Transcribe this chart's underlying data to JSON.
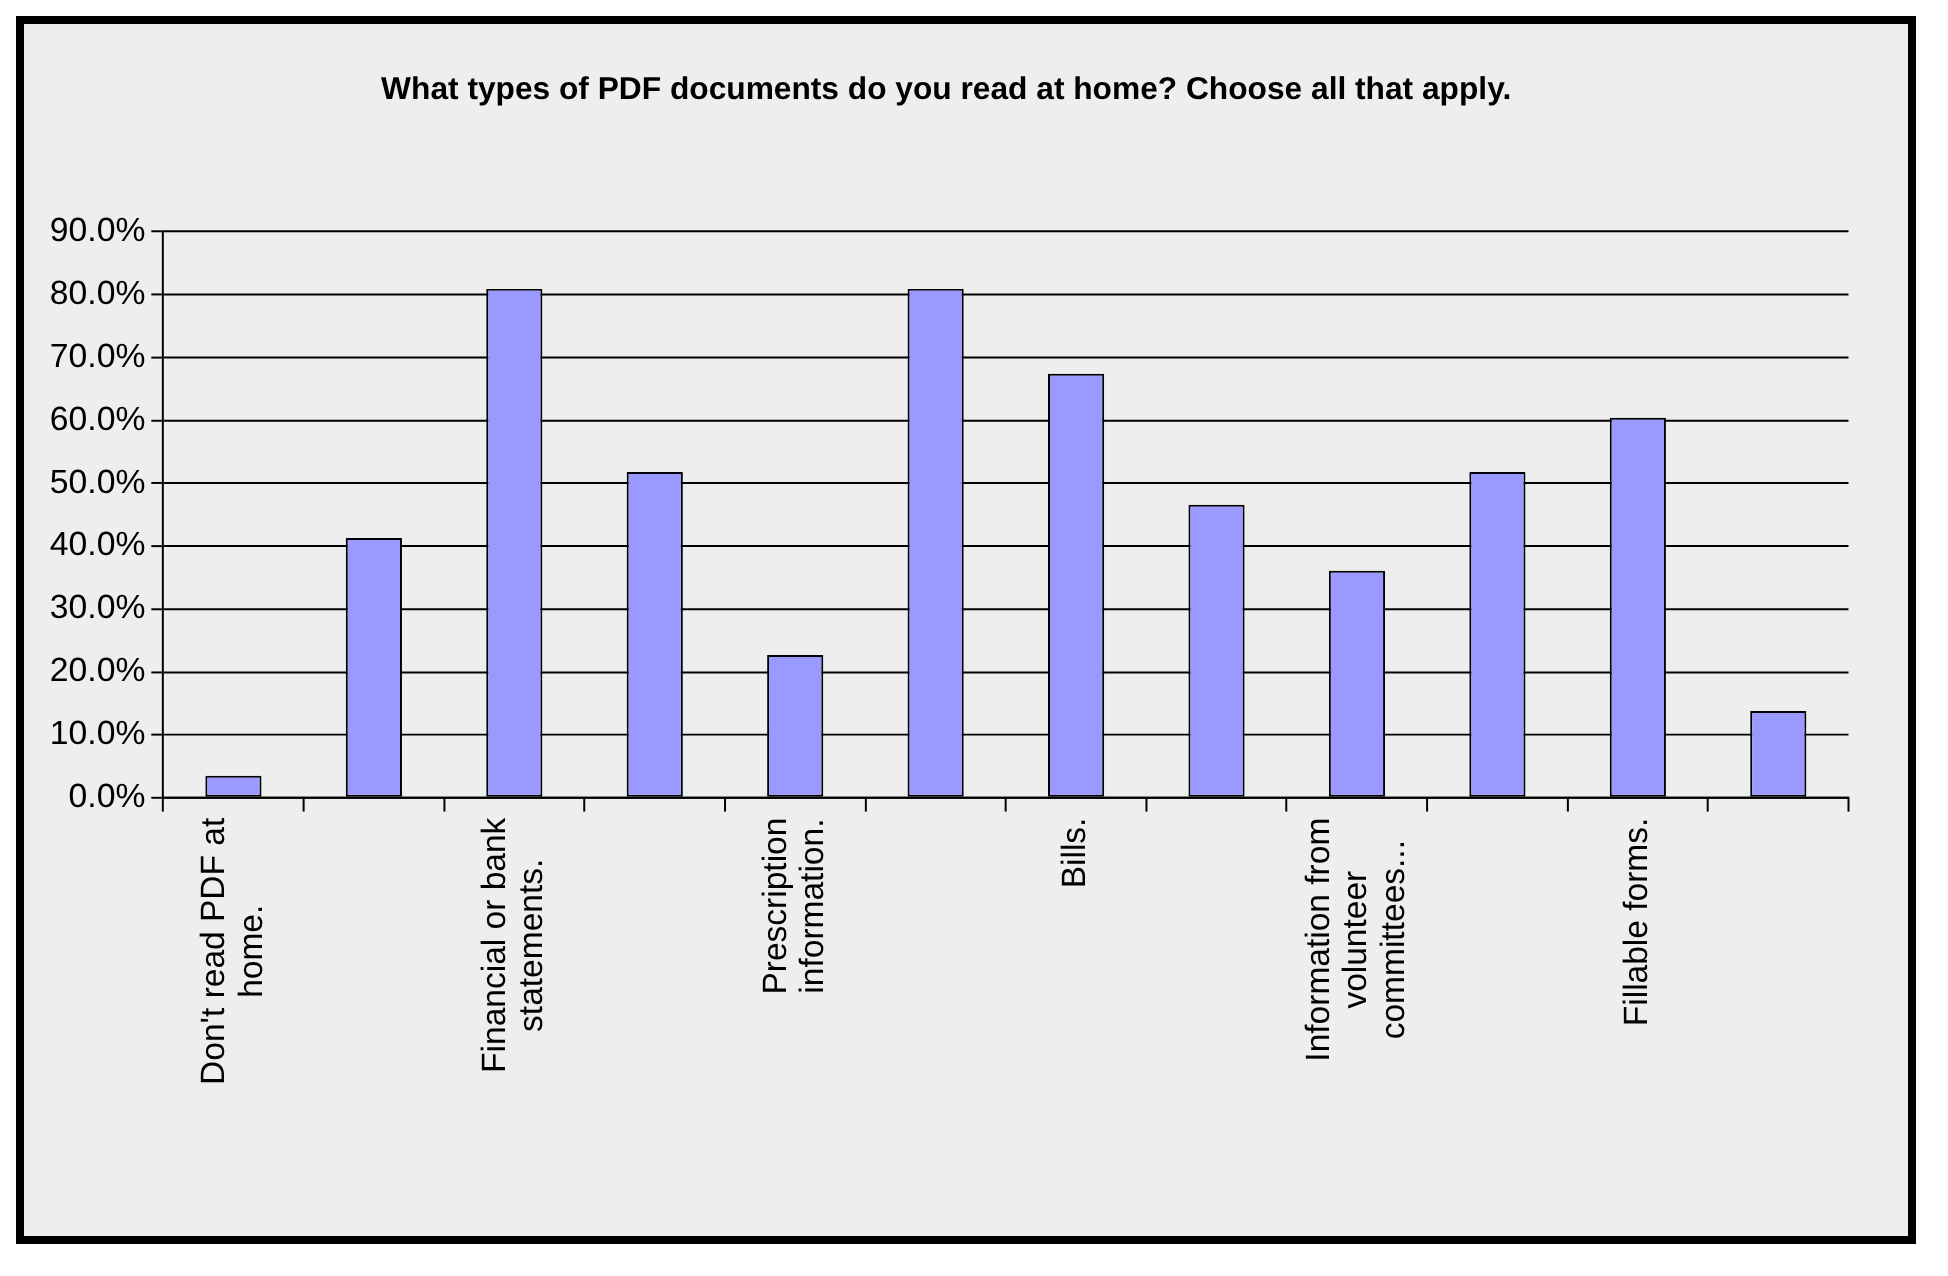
{
  "chart_data": {
    "type": "bar",
    "title": "What types of PDF documents do you read at home? Choose all that apply.",
    "categories": [
      "Don't read PDF at home.",
      null,
      "Financial or bank statements.",
      null,
      "Prescription information.",
      null,
      "Bills.",
      null,
      "Information from volunteer committees...",
      null,
      "Fillable forms.",
      null
    ],
    "values": [
      3.5,
      41.3,
      80.9,
      51.8,
      22.7,
      80.9,
      67.4,
      46.6,
      36.1,
      51.8,
      60.4,
      13.8
    ],
    "color": "#9999ff",
    "ylim": [
      0,
      90
    ],
    "yticks": [
      {
        "value": 0,
        "label": "0.0%"
      },
      {
        "value": 10,
        "label": "10.0%"
      },
      {
        "value": 20,
        "label": "20.0%"
      },
      {
        "value": 30,
        "label": "30.0%"
      },
      {
        "value": 40,
        "label": "40.0%"
      },
      {
        "value": 50,
        "label": "50.0%"
      },
      {
        "value": 60,
        "label": "60.0%"
      },
      {
        "value": 70,
        "label": "70.0%"
      },
      {
        "value": 80,
        "label": "80.0%"
      },
      {
        "value": 90,
        "label": "90.0%"
      }
    ],
    "grid": "y",
    "legend": false
  }
}
